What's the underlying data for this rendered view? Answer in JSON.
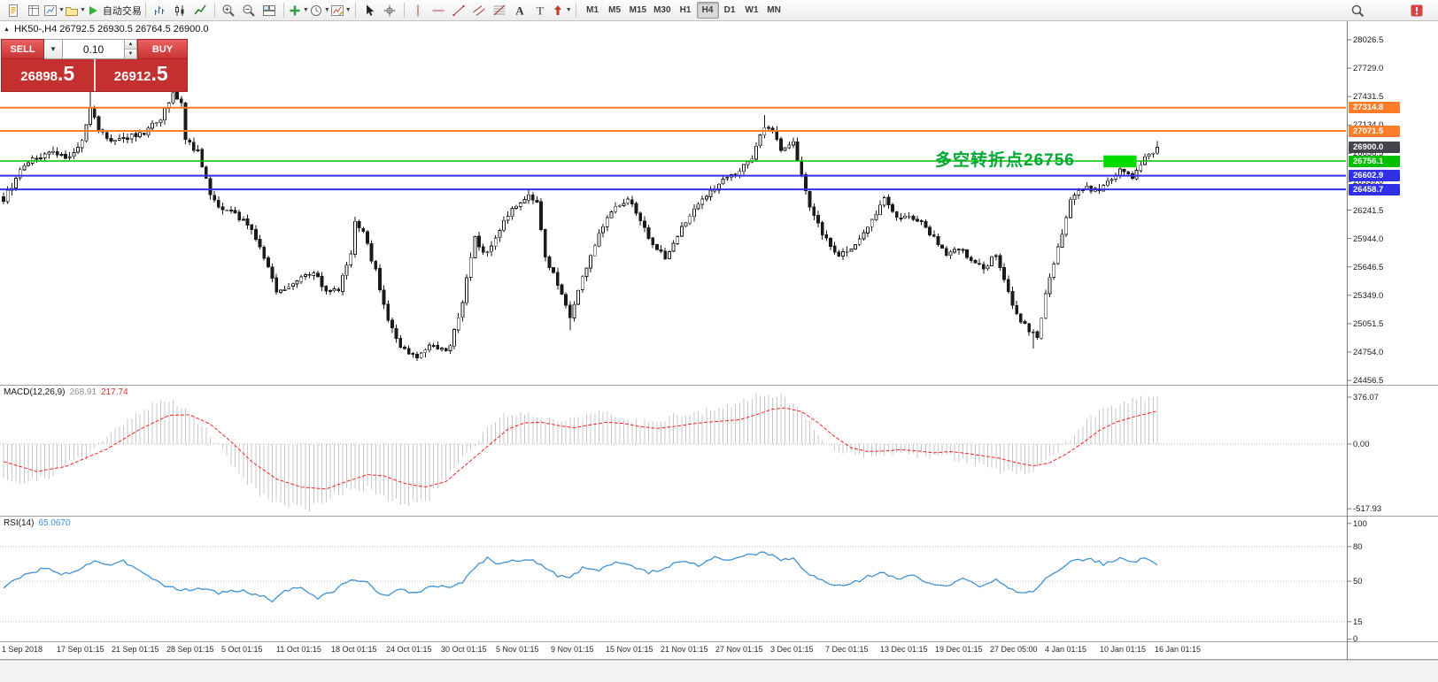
{
  "window": {
    "title_ohlc": "HK50-,H4 26792.5 26930.5 26764.5 26900.0",
    "symbol": "HK50-",
    "period": "H4"
  },
  "toolbar": {
    "items": [
      {
        "name": "new-order-icon",
        "icon": "doc"
      },
      {
        "name": "market-watch-icon",
        "icon": "book"
      },
      {
        "name": "new-chart-icon",
        "icon": "chart",
        "dd": true
      },
      {
        "name": "profiles-icon",
        "icon": "folder",
        "dd": true
      },
      {
        "name": "autotrading-button",
        "icon": "play",
        "label": "自动交易"
      },
      {
        "sep": true
      },
      {
        "name": "bar-chart-icon",
        "icon": "bars"
      },
      {
        "name": "candlestick-chart-icon",
        "icon": "candles"
      },
      {
        "name": "line-chart-icon",
        "icon": "line"
      },
      {
        "sep": true
      },
      {
        "name": "zoom-in-icon",
        "icon": "zoomin"
      },
      {
        "name": "zoom-out-icon",
        "icon": "zoomout"
      },
      {
        "name": "tile-windows-icon",
        "icon": "tile"
      },
      {
        "sep": true
      },
      {
        "name": "indicators-icon",
        "icon": "plus",
        "dd": true
      },
      {
        "name": "periods-icon",
        "icon": "clock",
        "dd": true
      },
      {
        "name": "templates-icon",
        "icon": "template",
        "dd": true
      },
      {
        "sep": true
      },
      {
        "name": "cursor-icon",
        "icon": "cursor"
      },
      {
        "name": "crosshair-icon",
        "icon": "crosshair"
      },
      {
        "sep": true
      },
      {
        "name": "vertical-line-icon",
        "icon": "vline"
      },
      {
        "name": "horizontal-line-icon",
        "icon": "hline"
      },
      {
        "name": "trendline-icon",
        "icon": "trend"
      },
      {
        "name": "channel-icon",
        "icon": "channel"
      },
      {
        "name": "fibonacci-icon",
        "icon": "fibo"
      },
      {
        "name": "text-icon",
        "icon": "textA"
      },
      {
        "name": "text-label-icon",
        "icon": "textT"
      },
      {
        "name": "arrows-icon",
        "icon": "arrows",
        "dd": true
      },
      {
        "sep": true
      }
    ],
    "timeframes": [
      "M1",
      "M5",
      "M15",
      "M30",
      "H1",
      "H4",
      "D1",
      "W1",
      "MN"
    ],
    "active_timeframe": "H4",
    "right_items": [
      {
        "name": "search-icon",
        "icon": "search"
      },
      {
        "name": "alert-icon",
        "icon": "alert"
      }
    ]
  },
  "trade_panel": {
    "collapse_glyph": "▲",
    "sell_label": "SELL",
    "buy_label": "BUY",
    "volume": "0.10",
    "combo_glyph": "▼",
    "spin_up": "▲",
    "spin_down": "▼",
    "sell_price_main": "26898",
    "sell_price_frac": ".5",
    "buy_price_main": "26912",
    "buy_price_frac": ".5"
  },
  "annotation": {
    "text": "多空转折点26756",
    "color": "#00a832"
  },
  "levels": [
    {
      "price": 27314.8,
      "label": "27314.8",
      "color": "#ff7d28",
      "w": 2
    },
    {
      "price": 27071.5,
      "label": "27071.5",
      "color": "#ff7d28",
      "w": 2
    },
    {
      "price": 26900.0,
      "label": "26900.0",
      "color": "#44444c",
      "line": false
    },
    {
      "price": 26756.1,
      "label": "26756.1",
      "color": "#00c000",
      "w": 1.5
    },
    {
      "price": 26602.9,
      "label": "26602.9",
      "color": "#3030e8",
      "w": 2
    },
    {
      "price": 26458.7,
      "label": "26458.7",
      "color": "#3030e8",
      "w": 2
    }
  ],
  "price_scale": {
    "top": 28026.5,
    "step": 297.5,
    "count": 13
  },
  "macd": {
    "label": "MACD(12,26,9)",
    "value1": "268.91",
    "value2": "217.74",
    "scale": [
      "376.07",
      "0.00",
      "-517.93"
    ]
  },
  "rsi": {
    "label": "RSI(14)",
    "value": "65.0670",
    "scale": [
      "100",
      "80",
      "50",
      "15",
      "0"
    ],
    "levels": [
      80,
      50,
      15
    ]
  },
  "time_axis": [
    "1 Sep 2018",
    "17 Sep 01:15",
    "21 Sep 01:15",
    "28 Sep 01:15",
    "5 Oct 01:15",
    "11 Oct 01:15",
    "18 Oct 01:15",
    "24 Oct 01:15",
    "30 Oct 01:15",
    "5 Nov 01:15",
    "9 Nov 01:15",
    "15 Nov 01:15",
    "21 Nov 01:15",
    "27 Nov 01:15",
    "3 Dec 01:15",
    "7 Dec 01:15",
    "13 Dec 01:15",
    "19 Dec 01:15",
    "27 Dec 05:00",
    "4 Jan 01:15",
    "10 Jan 01:15",
    "16 Jan 01:15"
  ],
  "chart_data": {
    "type": "candlestick",
    "n_candles": 280,
    "axis": {
      "price": [
        24411,
        28221
      ],
      "macd": [
        -574,
        468
      ],
      "rsi": [
        -2,
        106
      ]
    },
    "last_close": 26900.0,
    "price_anchors": [
      [
        0,
        26350
      ],
      [
        4,
        26650
      ],
      [
        8,
        26800
      ],
      [
        12,
        26850
      ],
      [
        16,
        26800
      ],
      [
        19,
        26950
      ],
      [
        21,
        27300
      ],
      [
        23,
        27100
      ],
      [
        26,
        26950
      ],
      [
        30,
        27000
      ],
      [
        34,
        27050
      ],
      [
        38,
        27200
      ],
      [
        41,
        27480
      ],
      [
        43,
        27350
      ],
      [
        44,
        26980
      ],
      [
        47,
        26850
      ],
      [
        50,
        26400
      ],
      [
        53,
        26250
      ],
      [
        56,
        26200
      ],
      [
        60,
        26050
      ],
      [
        63,
        25750
      ],
      [
        66,
        25400
      ],
      [
        69,
        25420
      ],
      [
        72,
        25550
      ],
      [
        75,
        25600
      ],
      [
        78,
        25380
      ],
      [
        81,
        25400
      ],
      [
        84,
        25800
      ],
      [
        85,
        26150
      ],
      [
        87,
        26000
      ],
      [
        90,
        25600
      ],
      [
        93,
        25100
      ],
      [
        96,
        24820
      ],
      [
        100,
        24700
      ],
      [
        103,
        24830
      ],
      [
        106,
        24780
      ],
      [
        108,
        24800
      ],
      [
        111,
        25300
      ],
      [
        114,
        25950
      ],
      [
        116,
        25800
      ],
      [
        118,
        25850
      ],
      [
        121,
        26150
      ],
      [
        124,
        26300
      ],
      [
        127,
        26400
      ],
      [
        129,
        26300
      ],
      [
        131,
        25750
      ],
      [
        134,
        25480
      ],
      [
        137,
        25100
      ],
      [
        139,
        25400
      ],
      [
        141,
        25650
      ],
      [
        144,
        25980
      ],
      [
        148,
        26300
      ],
      [
        151,
        26350
      ],
      [
        154,
        26150
      ],
      [
        157,
        25880
      ],
      [
        160,
        25750
      ],
      [
        163,
        25980
      ],
      [
        166,
        26200
      ],
      [
        170,
        26400
      ],
      [
        174,
        26550
      ],
      [
        178,
        26650
      ],
      [
        181,
        26800
      ],
      [
        184,
        27120
      ],
      [
        186,
        27080
      ],
      [
        188,
        26880
      ],
      [
        191,
        26950
      ],
      [
        193,
        26600
      ],
      [
        195,
        26250
      ],
      [
        198,
        26000
      ],
      [
        201,
        25780
      ],
      [
        204,
        25800
      ],
      [
        207,
        25950
      ],
      [
        210,
        26150
      ],
      [
        213,
        26350
      ],
      [
        216,
        26150
      ],
      [
        219,
        26200
      ],
      [
        222,
        26100
      ],
      [
        225,
        25950
      ],
      [
        228,
        25780
      ],
      [
        231,
        25850
      ],
      [
        234,
        25700
      ],
      [
        237,
        25620
      ],
      [
        240,
        25780
      ],
      [
        242,
        25500
      ],
      [
        245,
        25150
      ],
      [
        248,
        24980
      ],
      [
        250,
        24900
      ],
      [
        252,
        25350
      ],
      [
        255,
        25850
      ],
      [
        258,
        26350
      ],
      [
        261,
        26480
      ],
      [
        264,
        26450
      ],
      [
        267,
        26520
      ],
      [
        270,
        26680
      ],
      [
        273,
        26600
      ],
      [
        276,
        26780
      ],
      [
        279,
        26900
      ]
    ],
    "spikes": [
      {
        "i": 21,
        "high": 27520
      },
      {
        "i": 42,
        "high": 27660
      },
      {
        "i": 137,
        "low": 24980
      },
      {
        "i": 184,
        "high": 27240
      },
      {
        "i": 249,
        "low": 24790
      }
    ],
    "macd_signal_anchors": [
      [
        0,
        -140
      ],
      [
        8,
        -220
      ],
      [
        15,
        -180
      ],
      [
        25,
        -40
      ],
      [
        33,
        120
      ],
      [
        40,
        230
      ],
      [
        45,
        235
      ],
      [
        50,
        160
      ],
      [
        55,
        20
      ],
      [
        60,
        -140
      ],
      [
        66,
        -280
      ],
      [
        72,
        -345
      ],
      [
        78,
        -360
      ],
      [
        83,
        -300
      ],
      [
        88,
        -245
      ],
      [
        92,
        -255
      ],
      [
        97,
        -315
      ],
      [
        102,
        -345
      ],
      [
        107,
        -300
      ],
      [
        112,
        -160
      ],
      [
        117,
        -20
      ],
      [
        122,
        120
      ],
      [
        126,
        170
      ],
      [
        130,
        175
      ],
      [
        134,
        150
      ],
      [
        138,
        130
      ],
      [
        142,
        155
      ],
      [
        146,
        175
      ],
      [
        150,
        165
      ],
      [
        154,
        140
      ],
      [
        158,
        125
      ],
      [
        162,
        140
      ],
      [
        166,
        160
      ],
      [
        170,
        175
      ],
      [
        174,
        185
      ],
      [
        178,
        195
      ],
      [
        182,
        235
      ],
      [
        186,
        280
      ],
      [
        189,
        290
      ],
      [
        193,
        260
      ],
      [
        197,
        170
      ],
      [
        201,
        60
      ],
      [
        205,
        -30
      ],
      [
        209,
        -60
      ],
      [
        213,
        -55
      ],
      [
        217,
        -45
      ],
      [
        221,
        -55
      ],
      [
        225,
        -70
      ],
      [
        229,
        -60
      ],
      [
        233,
        -75
      ],
      [
        237,
        -95
      ],
      [
        241,
        -115
      ],
      [
        245,
        -150
      ],
      [
        249,
        -175
      ],
      [
        253,
        -150
      ],
      [
        257,
        -80
      ],
      [
        261,
        10
      ],
      [
        265,
        110
      ],
      [
        269,
        175
      ],
      [
        273,
        215
      ],
      [
        276,
        240
      ],
      [
        279,
        265
      ]
    ],
    "rsi_anchors": [
      [
        0,
        45
      ],
      [
        5,
        55
      ],
      [
        10,
        62
      ],
      [
        14,
        55
      ],
      [
        18,
        60
      ],
      [
        22,
        68
      ],
      [
        26,
        63
      ],
      [
        29,
        67
      ],
      [
        33,
        60
      ],
      [
        38,
        48
      ],
      [
        43,
        42
      ],
      [
        48,
        44
      ],
      [
        52,
        40
      ],
      [
        57,
        42
      ],
      [
        62,
        38
      ],
      [
        65,
        33
      ],
      [
        68,
        42
      ],
      [
        72,
        45
      ],
      [
        76,
        35
      ],
      [
        80,
        42
      ],
      [
        84,
        52
      ],
      [
        88,
        48
      ],
      [
        92,
        38
      ],
      [
        96,
        42
      ],
      [
        100,
        40
      ],
      [
        104,
        46
      ],
      [
        108,
        44
      ],
      [
        111,
        50
      ],
      [
        114,
        62
      ],
      [
        117,
        70
      ],
      [
        120,
        65
      ],
      [
        124,
        68
      ],
      [
        128,
        70
      ],
      [
        131,
        60
      ],
      [
        134,
        55
      ],
      [
        137,
        52
      ],
      [
        140,
        62
      ],
      [
        144,
        60
      ],
      [
        148,
        67
      ],
      [
        152,
        63
      ],
      [
        156,
        57
      ],
      [
        160,
        62
      ],
      [
        164,
        67
      ],
      [
        168,
        64
      ],
      [
        172,
        70
      ],
      [
        176,
        68
      ],
      [
        180,
        72
      ],
      [
        183,
        75
      ],
      [
        186,
        72
      ],
      [
        188,
        68
      ],
      [
        191,
        70
      ],
      [
        194,
        58
      ],
      [
        197,
        52
      ],
      [
        201,
        46
      ],
      [
        205,
        48
      ],
      [
        209,
        54
      ],
      [
        212,
        58
      ],
      [
        216,
        52
      ],
      [
        220,
        55
      ],
      [
        224,
        48
      ],
      [
        228,
        45
      ],
      [
        232,
        52
      ],
      [
        236,
        46
      ],
      [
        240,
        52
      ],
      [
        243,
        45
      ],
      [
        246,
        40
      ],
      [
        249,
        42
      ],
      [
        252,
        52
      ],
      [
        255,
        58
      ],
      [
        258,
        66
      ],
      [
        262,
        70
      ],
      [
        266,
        65
      ],
      [
        270,
        70
      ],
      [
        273,
        66
      ],
      [
        276,
        70
      ],
      [
        279,
        65
      ]
    ],
    "highlight_box": {
      "from_candle": 266,
      "to_candle": 274,
      "price_low": 26690,
      "price_high": 26815,
      "color": "#00dc00"
    }
  }
}
